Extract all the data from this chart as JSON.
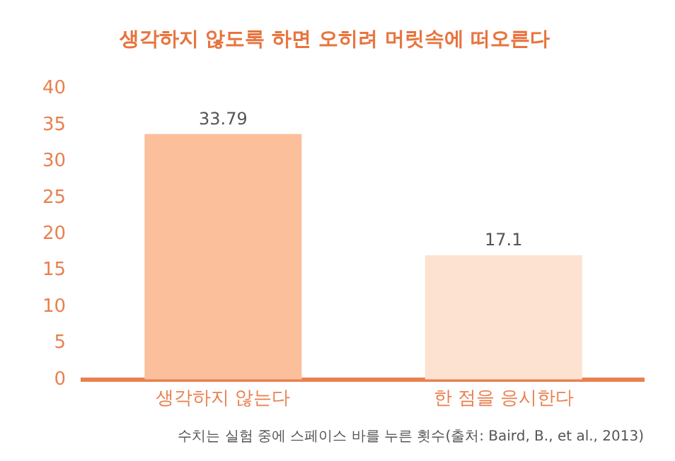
{
  "chart_data": {
    "type": "bar",
    "title": "생각하지 않도록 하면 오히려 머릿속에 떠오른다",
    "categories": [
      "생각하지 않는다",
      "한 점을 응시한다"
    ],
    "values": [
      33.79,
      17.1
    ],
    "colors": [
      "#fbbf9c",
      "#fde2d2"
    ],
    "ylim": [
      0,
      40
    ],
    "yticks": [
      0,
      5,
      10,
      15,
      20,
      25,
      30,
      35,
      40
    ],
    "grid": false,
    "data_labels": true,
    "annotations": [
      "수치는 실험 중에 스페이스 바를 누른 횟수(출처: Baird, B., et al., 2013)"
    ]
  }
}
